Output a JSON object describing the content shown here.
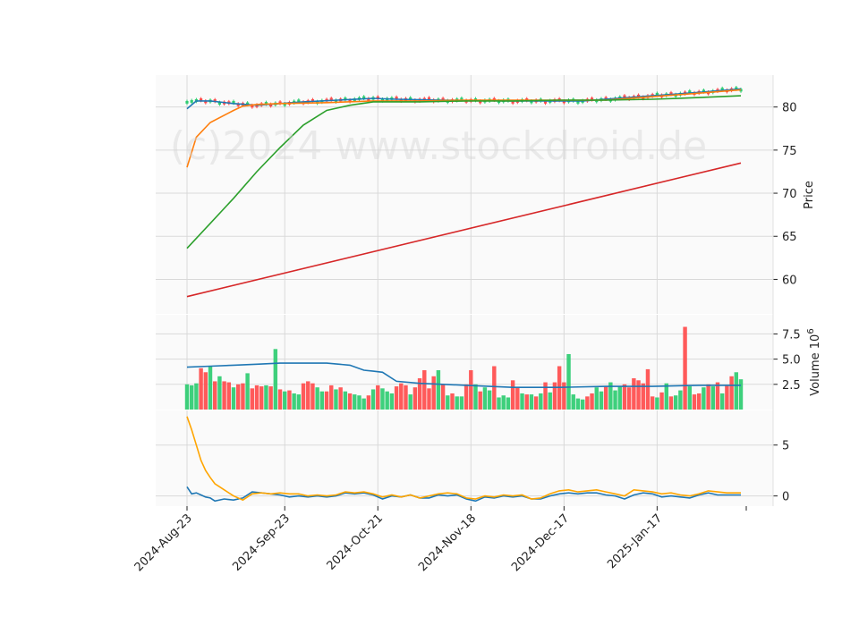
{
  "watermark": "(c)2024 www.stockdroid.de",
  "colors": {
    "up": "#2ecc71",
    "down": "#ff4c4c",
    "sma_blue": "#1f77b4",
    "sma_orange": "#ff7f0e",
    "sma_green": "#2ca02c",
    "sma_red": "#d62728",
    "vol_ma": "#1f77b4",
    "osc_blue": "#1f77b4",
    "osc_orange": "#ffa500",
    "grid": "#d9d9d9",
    "panel_bg": "#fafafa"
  },
  "chart_data": [
    {
      "type": "candlestick",
      "name": "price",
      "ylabel": "Price",
      "ylim": [
        56,
        83.7
      ],
      "yticks": [
        60,
        65,
        70,
        75,
        80
      ],
      "xticks": [
        "2024-Aug-23",
        "2024-Sep-23",
        "2024-Oct-21",
        "2024-Nov-18",
        "2024-Dec-17",
        "2025-Jan-17"
      ],
      "xtick_index": [
        0,
        21,
        41,
        61,
        81,
        101
      ],
      "n_sessions": 120,
      "grid": true,
      "series": [
        {
          "name": "",
          "kind": "line",
          "x": [
            0,
            2,
            5,
            10,
            15,
            25,
            40,
            45,
            55,
            70,
            85,
            100,
            110,
            119
          ],
          "y": [
            79.8,
            80.7,
            80.7,
            80.4,
            80.2,
            80.6,
            81.0,
            80.9,
            80.8,
            80.7,
            80.7,
            81.3,
            81.7,
            82.1
          ]
        },
        {
          "name": "",
          "kind": "line",
          "x": [
            0,
            2,
            5,
            10,
            12,
            15,
            20,
            30,
            40,
            50,
            60,
            70,
            80,
            90,
            100,
            110,
            119
          ],
          "y": [
            73.0,
            76.5,
            78.2,
            79.6,
            80.1,
            80.3,
            80.4,
            80.5,
            80.7,
            80.7,
            80.8,
            80.8,
            80.8,
            80.8,
            81.2,
            81.6,
            82.0
          ]
        },
        {
          "name": "",
          "kind": "line",
          "x": [
            0,
            5,
            10,
            15,
            20,
            25,
            30,
            35,
            40,
            50,
            60,
            70,
            80,
            90,
            100,
            110,
            119
          ],
          "y": [
            63.6,
            66.5,
            69.4,
            72.5,
            75.3,
            77.9,
            79.6,
            80.2,
            80.6,
            80.6,
            80.7,
            80.7,
            80.8,
            80.8,
            80.9,
            81.1,
            81.3
          ]
        },
        {
          "name": "",
          "kind": "line",
          "x": [
            0,
            119
          ],
          "y": [
            58.0,
            73.5
          ]
        }
      ],
      "candles_approx": {
        "start": 80.5,
        "end": 82.3,
        "note": ""
      }
    },
    {
      "type": "bar",
      "name": "volume",
      "ylabel": "Volume  10^6",
      "ylim": [
        0,
        9.4
      ],
      "yticks": [
        2.5,
        5.0,
        7.5
      ],
      "values": [
        2.5,
        2.4,
        2.6,
        4.1,
        3.7,
        4.3,
        2.8,
        3.3,
        2.8,
        2.7,
        2.2,
        2.5,
        2.6,
        3.6,
        2.1,
        2.4,
        2.3,
        2.4,
        2.3,
        6.0,
        2.0,
        1.8,
        1.9,
        1.6,
        1.5,
        2.6,
        2.8,
        2.6,
        2.2,
        1.8,
        1.8,
        2.4,
        2.0,
        2.2,
        1.8,
        1.6,
        1.5,
        1.4,
        1.1,
        1.4,
        2.0,
        2.4,
        2.1,
        1.8,
        1.6,
        2.3,
        2.6,
        2.4,
        1.5,
        2.2,
        3.1,
        3.9,
        2.1,
        3.3,
        3.9,
        2.5,
        1.4,
        1.6,
        1.3,
        1.3,
        2.5,
        3.9,
        2.5,
        1.8,
        2.2,
        1.9,
        4.3,
        1.2,
        1.4,
        1.2,
        2.9,
        2.2,
        1.6,
        1.5,
        1.5,
        1.3,
        1.6,
        2.7,
        1.7,
        2.7,
        4.3,
        2.7,
        5.5,
        1.5,
        1.1,
        1.0,
        1.3,
        1.6,
        2.2,
        1.8,
        2.3,
        2.7,
        1.9,
        2.3,
        2.5,
        2.2,
        3.1,
        2.9,
        2.6,
        4.0,
        1.3,
        1.2,
        1.7,
        2.6,
        1.3,
        1.4,
        1.9,
        8.2,
        2.3,
        1.5,
        1.6,
        2.2,
        2.5,
        2.3,
        2.7,
        1.6,
        2.4,
        3.3,
        3.7,
        3.0
      ],
      "up": [
        1,
        1,
        1,
        0,
        0,
        1,
        0,
        1,
        0,
        0,
        1,
        0,
        0,
        1,
        0,
        0,
        0,
        1,
        0,
        1,
        0,
        1,
        0,
        1,
        1,
        0,
        0,
        0,
        1,
        1,
        0,
        0,
        1,
        0,
        1,
        0,
        1,
        1,
        1,
        0,
        1,
        0,
        1,
        1,
        1,
        0,
        0,
        0,
        1,
        0,
        0,
        0,
        0,
        0,
        1,
        0,
        1,
        0,
        1,
        1,
        0,
        0,
        1,
        0,
        1,
        1,
        0,
        1,
        1,
        1,
        0,
        0,
        1,
        0,
        1,
        0,
        1,
        0,
        1,
        0,
        0,
        0,
        1,
        1,
        1,
        1,
        0,
        0,
        1,
        1,
        0,
        1,
        1,
        1,
        0,
        0,
        0,
        0,
        0,
        0,
        0,
        1,
        0,
        1,
        0,
        1,
        1,
        0,
        1,
        0,
        0,
        1,
        0,
        1,
        0,
        1,
        0,
        0,
        1,
        1
      ],
      "ma": {
        "x": [
          0,
          5,
          10,
          15,
          20,
          25,
          30,
          35,
          38,
          40,
          42,
          45,
          50,
          60,
          70,
          80,
          90,
          100,
          110,
          119
        ],
        "y": [
          4.2,
          4.3,
          4.4,
          4.5,
          4.6,
          4.6,
          4.6,
          4.4,
          3.9,
          3.8,
          3.7,
          2.8,
          2.6,
          2.4,
          2.2,
          2.2,
          2.3,
          2.3,
          2.4,
          2.4
        ]
      }
    },
    {
      "type": "line",
      "name": "oscillator",
      "ylim": [
        -1.0,
        8.4
      ],
      "yticks": [
        0,
        5
      ],
      "series": [
        {
          "name": "",
          "x": [
            0,
            1,
            2,
            3,
            4,
            5,
            6,
            8,
            10,
            12,
            14,
            16,
            18,
            20,
            22,
            24,
            26,
            28,
            30,
            32,
            34,
            36,
            38,
            40,
            42,
            44,
            46,
            48,
            50,
            52,
            54,
            56,
            58,
            60,
            62,
            64,
            66,
            68,
            70,
            72,
            74,
            76,
            78,
            80,
            82,
            84,
            86,
            88,
            90,
            92,
            94,
            96,
            98,
            100,
            102,
            104,
            106,
            108,
            110,
            112,
            114,
            116,
            119
          ],
          "y": [
            0.9,
            0.2,
            0.3,
            0.1,
            -0.1,
            -0.2,
            -0.5,
            -0.3,
            -0.4,
            -0.2,
            0.4,
            0.3,
            0.2,
            0.1,
            -0.1,
            0.0,
            -0.1,
            0.0,
            -0.1,
            0.0,
            0.3,
            0.2,
            0.3,
            0.1,
            -0.3,
            0.0,
            -0.1,
            0.1,
            -0.2,
            -0.2,
            0.1,
            0.0,
            0.1,
            -0.3,
            -0.5,
            -0.1,
            -0.2,
            0.0,
            -0.1,
            0.0,
            -0.3,
            -0.3,
            0.0,
            0.2,
            0.3,
            0.2,
            0.3,
            0.3,
            0.1,
            0.0,
            -0.3,
            0.1,
            0.3,
            0.2,
            -0.1,
            0.0,
            -0.1,
            -0.2,
            0.1,
            0.3,
            0.1,
            0.1,
            0.1
          ]
        },
        {
          "name": "",
          "x": [
            0,
            1,
            2,
            3,
            4,
            5,
            6,
            8,
            10,
            12,
            14,
            16,
            18,
            20,
            22,
            24,
            26,
            28,
            30,
            32,
            34,
            36,
            38,
            40,
            42,
            44,
            46,
            48,
            50,
            52,
            54,
            56,
            58,
            60,
            62,
            64,
            66,
            68,
            70,
            72,
            74,
            76,
            78,
            80,
            82,
            84,
            86,
            88,
            90,
            92,
            94,
            96,
            98,
            100,
            102,
            104,
            106,
            108,
            110,
            112,
            114,
            116,
            119
          ],
          "y": [
            7.8,
            6.5,
            5.0,
            3.5,
            2.5,
            1.8,
            1.2,
            0.6,
            0.0,
            -0.4,
            0.2,
            0.3,
            0.2,
            0.3,
            0.2,
            0.2,
            0.0,
            0.1,
            0.0,
            0.1,
            0.4,
            0.3,
            0.4,
            0.2,
            -0.1,
            0.1,
            -0.1,
            0.1,
            -0.2,
            0.0,
            0.2,
            0.3,
            0.2,
            -0.2,
            -0.3,
            0.0,
            -0.1,
            0.1,
            0.0,
            0.1,
            -0.3,
            -0.2,
            0.2,
            0.5,
            0.6,
            0.4,
            0.5,
            0.6,
            0.4,
            0.2,
            0.0,
            0.6,
            0.5,
            0.4,
            0.2,
            0.3,
            0.1,
            0.0,
            0.2,
            0.5,
            0.4,
            0.3,
            0.3
          ]
        }
      ]
    }
  ]
}
